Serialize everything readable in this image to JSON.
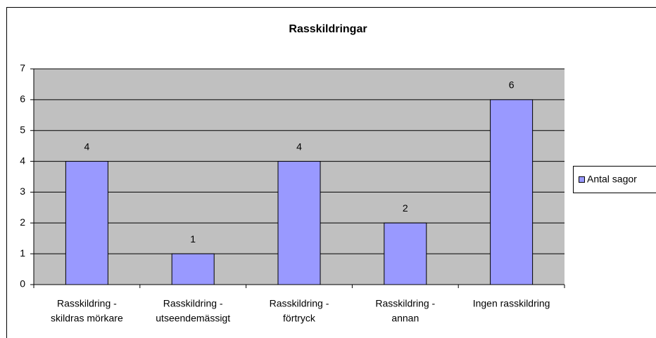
{
  "chart_data": {
    "type": "bar",
    "title": "Rasskildringar",
    "categories": [
      [
        "Rasskildring -",
        "skildras mörkare"
      ],
      [
        "Rasskildring -",
        "utseendemässigt"
      ],
      [
        "Rasskildring -",
        "förtryck"
      ],
      [
        "Rasskildring -",
        "annan"
      ],
      [
        "Ingen rasskildring"
      ]
    ],
    "series": [
      {
        "name": "Antal sagor",
        "color": "#9999ff",
        "values": [
          4,
          1,
          4,
          2,
          6
        ]
      }
    ],
    "ylim": [
      0,
      7
    ],
    "yticks": [
      0,
      1,
      2,
      3,
      4,
      5,
      6,
      7
    ],
    "grid": true,
    "legend": "right"
  }
}
